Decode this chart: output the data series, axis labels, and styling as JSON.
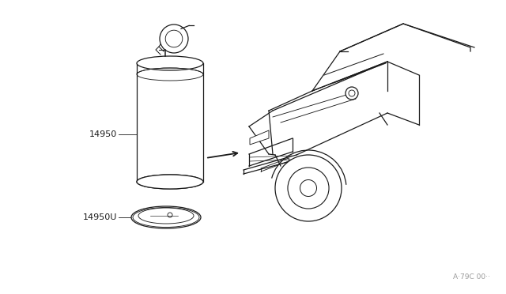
{
  "bg_color": "#ffffff",
  "line_color": "#1a1a1a",
  "label_color": "#1a1a1a",
  "watermark_text": "A·79C 00··",
  "label1_text": "14950",
  "label2_text": "14950U",
  "font_size": 8,
  "watermark_font_size": 6.5
}
